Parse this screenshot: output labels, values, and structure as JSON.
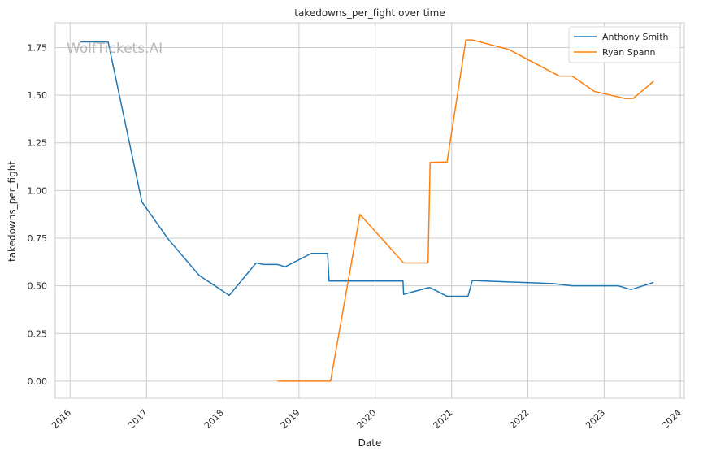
{
  "chart_data": {
    "type": "line",
    "title": "takedowns_per_fight over time",
    "xlabel": "Date",
    "ylabel": "takedowns_per_fight",
    "xlim": [
      "2015-10-22",
      "2024-01-20"
    ],
    "ylim": [
      -0.09,
      1.88
    ],
    "x_ticks": [
      "2016-01-01",
      "2017-01-01",
      "2018-01-01",
      "2019-01-01",
      "2020-01-01",
      "2021-01-01",
      "2022-01-01",
      "2023-01-01",
      "2024-01-01"
    ],
    "x_tick_labels": [
      "2016",
      "2017",
      "2018",
      "2019",
      "2020",
      "2021",
      "2022",
      "2023",
      "2024"
    ],
    "y_ticks": [
      0.0,
      0.25,
      0.5,
      0.75,
      1.0,
      1.25,
      1.5,
      1.75
    ],
    "y_tick_labels": [
      "0.00",
      "0.25",
      "0.50",
      "0.75",
      "1.00",
      "1.25",
      "1.50",
      "1.75"
    ],
    "grid": true,
    "legend_position": "top-right",
    "watermark": "WolfTickets.AI",
    "series": [
      {
        "name": "Anthony Smith",
        "color": "#1f77b4",
        "x": [
          "2016-02-20",
          "2016-07-01",
          "2016-12-10",
          "2017-04-15",
          "2017-09-10",
          "2018-02-01",
          "2018-06-10",
          "2018-07-15",
          "2018-09-20",
          "2018-10-27",
          "2019-03-01",
          "2019-05-18",
          "2019-05-25",
          "2020-05-13",
          "2020-05-16",
          "2020-09-10",
          "2020-09-20",
          "2020-12-10",
          "2021-03-20",
          "2021-04-10",
          "2021-08-01",
          "2022-05-01",
          "2022-08-01",
          "2023-03-10",
          "2023-05-10",
          "2023-08-26"
        ],
        "y": [
          1.78,
          1.78,
          0.94,
          0.745,
          0.555,
          0.45,
          0.62,
          0.612,
          0.612,
          0.6,
          0.67,
          0.67,
          0.525,
          0.525,
          0.455,
          0.49,
          0.49,
          0.445,
          0.445,
          0.528,
          0.523,
          0.512,
          0.5,
          0.5,
          0.48,
          0.518
        ]
      },
      {
        "name": "Ryan Spann",
        "color": "#ff7f0e",
        "x": [
          "2018-09-20",
          "2019-06-01",
          "2019-10-20",
          "2020-05-16",
          "2020-09-10",
          "2020-09-20",
          "2020-12-10",
          "2021-03-10",
          "2021-04-10",
          "2021-10-01",
          "2022-06-01",
          "2022-08-01",
          "2022-11-15",
          "2023-04-10",
          "2023-05-20",
          "2023-08-26"
        ],
        "y": [
          0.0,
          0.0,
          0.875,
          0.62,
          0.62,
          1.148,
          1.15,
          1.79,
          1.79,
          1.74,
          1.6,
          1.6,
          1.52,
          1.483,
          1.483,
          1.573
        ]
      }
    ]
  }
}
